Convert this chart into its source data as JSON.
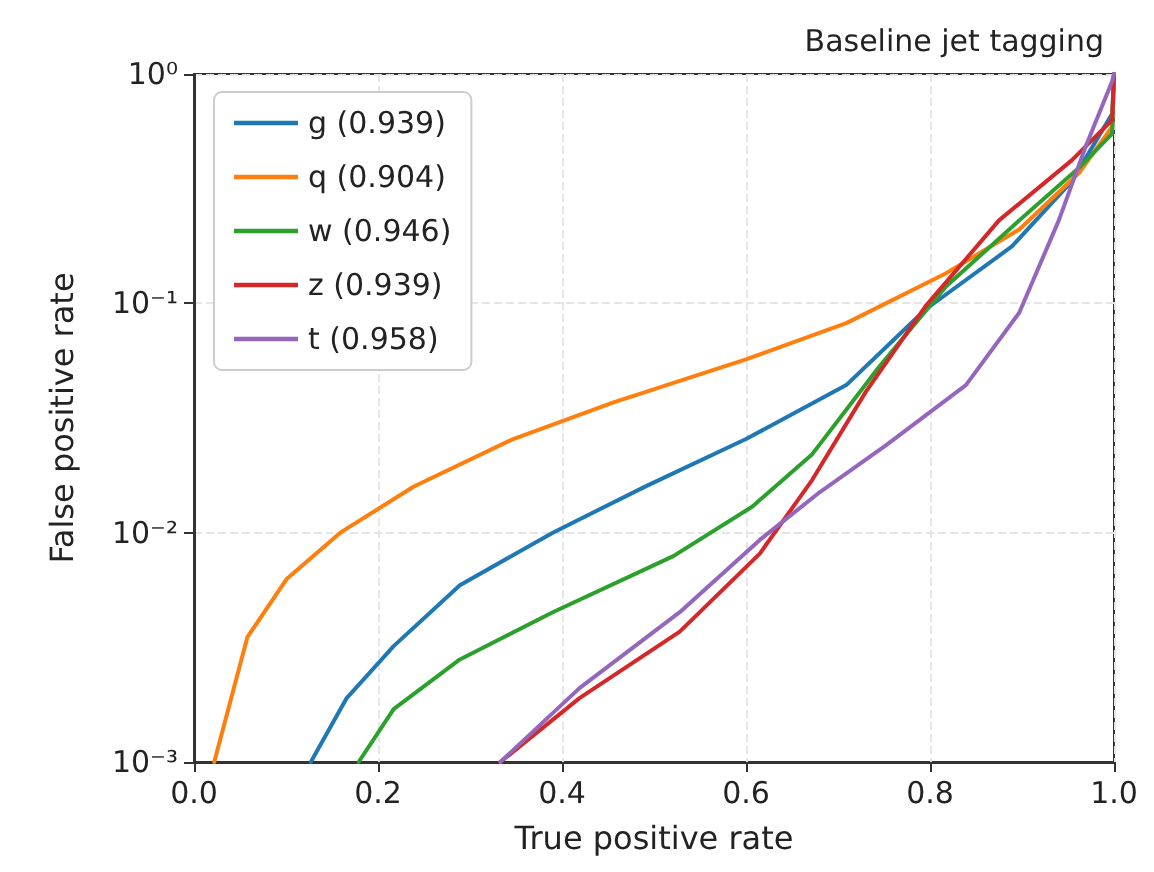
{
  "chart_data": {
    "type": "line",
    "title": "Baseline jet tagging",
    "xlabel": "True positive rate",
    "ylabel": "False positive rate",
    "log": "y",
    "grid": true,
    "legend": "top left",
    "marker": "none",
    "line_style": "solid",
    "xlim": [
      0,
      1
    ],
    "xticks": [
      {
        "value": 0,
        "label": "0.0"
      },
      {
        "value": 0.2,
        "label": "0.2"
      },
      {
        "value": 0.4,
        "label": "0.4"
      },
      {
        "value": 0.6,
        "label": "0.6"
      },
      {
        "value": 0.8,
        "label": "0.8"
      },
      {
        "value": 1,
        "label": "1.0"
      }
    ],
    "ylim": [
      0.001,
      1
    ],
    "yticks": [
      {
        "value": 0.001,
        "label": "10⁻³"
      },
      {
        "value": 0.01,
        "label": "10⁻²"
      },
      {
        "value": 0.1,
        "label": "10⁻¹"
      },
      {
        "value": 1,
        "label": "10⁰"
      }
    ],
    "series": [
      {
        "name": "g (0.939)",
        "color": "#1f77b4",
        "x": [
          0.127,
          0.166,
          0.217,
          0.289,
          0.39,
          0.492,
          0.6,
          0.709,
          0.795,
          0.889,
          0.954,
          0.998,
          1.0
        ],
        "values": [
          0.001,
          0.0019,
          0.0032,
          0.0059,
          0.01,
          0.016,
          0.0256,
          0.044,
          0.094,
          0.177,
          0.34,
          0.67,
          1.0
        ]
      },
      {
        "name": "q (0.904)",
        "color": "#ff7f0e",
        "x": [
          0.022,
          0.058,
          0.101,
          0.159,
          0.239,
          0.347,
          0.456,
          0.6,
          0.709,
          0.817,
          0.897,
          0.962,
          0.998,
          1.0
        ],
        "values": [
          0.001,
          0.0035,
          0.0063,
          0.01,
          0.0159,
          0.0256,
          0.037,
          0.057,
          0.082,
          0.135,
          0.21,
          0.37,
          0.59,
          1.0
        ]
      },
      {
        "name": "w (0.946)",
        "color": "#2ca02c",
        "x": [
          0.179,
          0.217,
          0.289,
          0.39,
          0.521,
          0.607,
          0.672,
          0.745,
          0.817,
          0.897,
          0.962,
          0.998,
          1.0
        ],
        "values": [
          0.001,
          0.0017,
          0.0028,
          0.0045,
          0.0079,
          0.013,
          0.022,
          0.053,
          0.118,
          0.23,
          0.39,
          0.55,
          1.0
        ]
      },
      {
        "name": "z (0.939)",
        "color": "#d62728",
        "x": [
          0.333,
          0.419,
          0.528,
          0.615,
          0.672,
          0.73,
          0.795,
          0.875,
          0.954,
          0.998,
          1.0
        ],
        "values": [
          0.001,
          0.0019,
          0.0037,
          0.0081,
          0.017,
          0.041,
          0.097,
          0.23,
          0.42,
          0.63,
          1.0
        ]
      },
      {
        "name": "t (0.958)",
        "color": "#9467bd",
        "x": [
          0.333,
          0.419,
          0.528,
          0.615,
          0.68,
          0.752,
          0.839,
          0.897,
          0.94,
          0.969,
          0.998,
          1.0
        ],
        "values": [
          0.001,
          0.0021,
          0.0045,
          0.0093,
          0.015,
          0.024,
          0.044,
          0.091,
          0.23,
          0.48,
          0.93,
          1.0
        ]
      }
    ]
  }
}
